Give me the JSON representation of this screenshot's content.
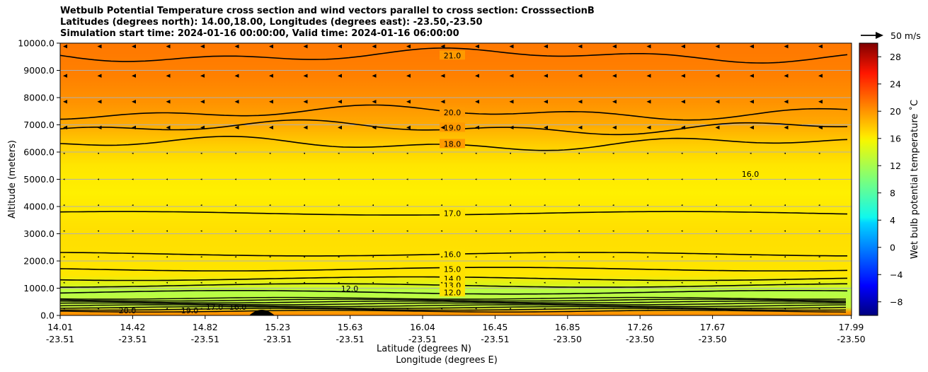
{
  "chart_data": {
    "type": "heatmap",
    "title_lines": [
      "Wetbulb Potential Temperature cross section and wind vectors parallel to cross section: CrosssectionB",
      "Latitudes (degrees north): 14.00,18.00, Longitudes (degrees east): -23.50,-23.50",
      "Simulation start time: 2024-01-16 00:00:00, Valid time: 2024-01-16 06:00:00"
    ],
    "xlabel": "Latitude (degrees N)",
    "xlabel2": "Longitude (degrees E)",
    "ylabel": "Altitude (meters)",
    "ylim": [
      0,
      10000
    ],
    "y_ticks": [
      "0.0",
      "1000.0",
      "2000.0",
      "3000.0",
      "4000.0",
      "5000.0",
      "6000.0",
      "7000.0",
      "8000.0",
      "9000.0",
      "10000.0"
    ],
    "x_ticks": [
      {
        "lat": "14.01",
        "lon": "-23.51"
      },
      {
        "lat": "14.42",
        "lon": "-23.51"
      },
      {
        "lat": "14.82",
        "lon": "-23.51"
      },
      {
        "lat": "15.23",
        "lon": "-23.51"
      },
      {
        "lat": "15.63",
        "lon": "-23.51"
      },
      {
        "lat": "16.04",
        "lon": "-23.51"
      },
      {
        "lat": "16.45",
        "lon": "-23.51"
      },
      {
        "lat": "16.85",
        "lon": "-23.50"
      },
      {
        "lat": "17.26",
        "lon": "-23.50"
      },
      {
        "lat": "17.67",
        "lon": "-23.50"
      },
      {
        "lat": "17.99",
        "lon": "-23.50"
      }
    ],
    "grid": "horizontal",
    "colorbar": {
      "label": "Wet bulb potential temperature $^\\circ$C",
      "label_display": "Wet bulb potential temperature ˚C",
      "range": [
        -10,
        30
      ],
      "ticks": [
        "−8",
        "−4",
        "0",
        "4",
        "8",
        "12",
        "16",
        "20",
        "24",
        "28"
      ],
      "colormap": "jet"
    },
    "wind_key_label": "50 m/s",
    "contours": [
      {
        "level": 21.0,
        "label": "21.0",
        "altitude": 9550
      },
      {
        "level": 20.0,
        "label": "20.0",
        "altitude": 7450
      },
      {
        "level": 19.0,
        "label": "19.0",
        "altitude": 6900
      },
      {
        "level": 18.0,
        "label": "18.0",
        "altitude": 6300
      },
      {
        "level": 17.0,
        "label": "17.0",
        "altitude": 3750
      },
      {
        "level": 16.0,
        "label": "16.0",
        "altitude": 2250
      },
      {
        "level": 15.0,
        "label": "15.0",
        "altitude": 1700
      },
      {
        "level": 14.0,
        "label": "14.0",
        "altitude": 1350
      },
      {
        "level": 13.0,
        "label": "13.0",
        "altitude": 1100
      },
      {
        "level": 12.0,
        "label": "12.0",
        "altitude": 850
      }
    ],
    "small_labels": [
      "20.0",
      "19.0",
      "17.0",
      "16.0",
      "12.0",
      "16.0"
    ]
  }
}
